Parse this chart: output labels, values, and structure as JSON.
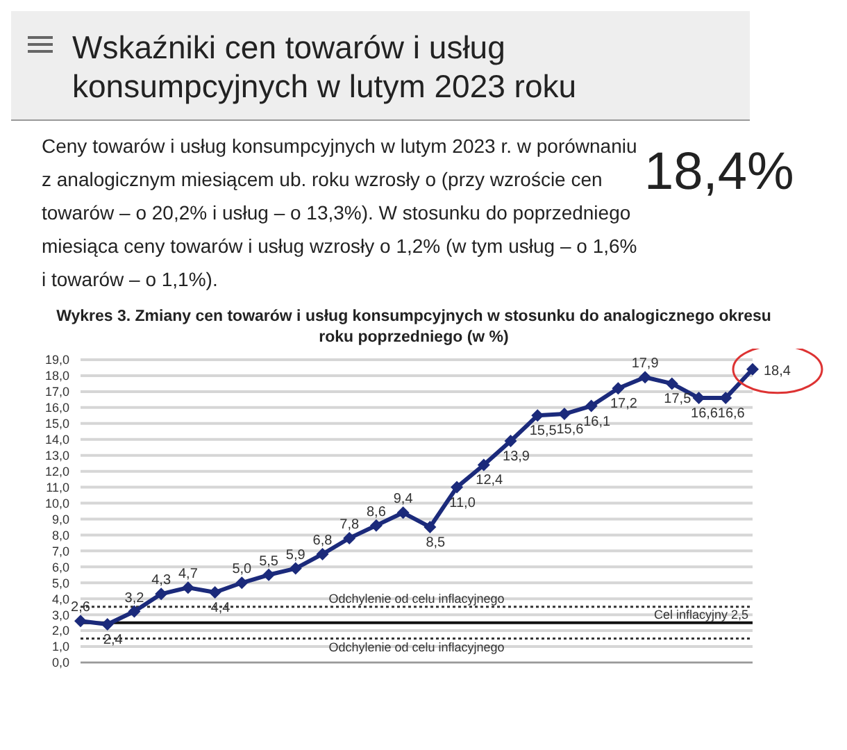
{
  "chart_data": {
    "type": "line",
    "title": "Wskaźniki cen towarów i usług konsumpcyjnych w lutym 2023 roku",
    "subtitle": "Ceny towarów i usług konsumpcyjnych w lutym 2023 r. w porównaniu z analogicznym miesiącem ub. roku wzrosły o (przy wzroście cen towarów – o 20,2% i usług – o 13,3%). W stosunku do poprzedniego miesiąca ceny towarów i usług wzrosły o 1,2% (w tym usług – o 1,6% i towarów – o 1,1%).",
    "annotations": [
      "18,4%",
      "Wykres 3. Zmiany cen towarów i usług konsumpcyjnych w stosunku do analogicznego okresu roku poprzedniego (w %)"
    ],
    "categories": [
      null,
      null,
      null,
      null,
      null,
      null,
      null,
      null,
      null,
      null,
      null,
      null,
      null,
      null,
      null,
      null,
      null,
      null,
      null,
      null,
      null,
      null,
      null,
      null,
      null,
      null
    ],
    "series": [
      {
        "color": "#1b2a7b",
        "values": [
          2.6,
          2.4,
          3.2,
          4.3,
          4.7,
          4.4,
          5.0,
          5.5,
          5.9,
          6.8,
          7.8,
          8.6,
          9.4,
          8.5,
          11.0,
          12.4,
          13.9,
          15.5,
          15.6,
          16.1,
          17.2,
          17.9,
          17.5,
          16.6,
          16.6,
          18.4
        ],
        "value_labels": [
          "2,6",
          "2,4",
          "3,2",
          "4,3",
          "4,7",
          "4,4",
          "5,0",
          "5,5",
          "5,9",
          "6,8",
          "7,8",
          "8,6",
          "9,4",
          "8,5",
          "11,0",
          "12,4",
          "13,9",
          "15,5",
          "15,6",
          "16,1",
          "17,2",
          "17,9",
          "17,5",
          "16,6",
          "16,6",
          "18,4"
        ]
      }
    ],
    "ylim": [
      0,
      19
    ],
    "yticks": [
      {
        "value": 0,
        "label": "0,0"
      },
      {
        "value": 1,
        "label": "1,0"
      },
      {
        "value": 2,
        "label": "2,0"
      },
      {
        "value": 3,
        "label": "3,0"
      },
      {
        "value": 4,
        "label": "4,0"
      },
      {
        "value": 5,
        "label": "5,0"
      },
      {
        "value": 6,
        "label": "6,0"
      },
      {
        "value": 7,
        "label": "7,0"
      },
      {
        "value": 8,
        "label": "8,0"
      },
      {
        "value": 9,
        "label": "9,0"
      },
      {
        "value": 10,
        "label": "10,0"
      },
      {
        "value": 11,
        "label": "11,0"
      },
      {
        "value": 12,
        "label": "12,0"
      },
      {
        "value": 13,
        "label": "13,0"
      },
      {
        "value": 14,
        "label": "14,0"
      },
      {
        "value": 15,
        "label": "15,0"
      },
      {
        "value": 16,
        "label": "16,0"
      },
      {
        "value": 17,
        "label": "17,0"
      },
      {
        "value": 18,
        "label": "18,0"
      },
      {
        "value": 19,
        "label": "19,0"
      }
    ],
    "ref_lines": [
      {
        "axis": "y",
        "value": 3.5,
        "label": "Odchylenie od celu inflacyjnego",
        "line_style": "dotted",
        "color": "#333333"
      },
      {
        "axis": "y",
        "value": 2.5,
        "label": "Cel inflacyjny 2,5",
        "line_style": "solid",
        "color": "#111111"
      },
      {
        "axis": "y",
        "value": 1.5,
        "label": "Odchylenie od celu inflacyjnego",
        "line_style": "dotted",
        "color": "#333333"
      }
    ],
    "grid": "y",
    "marker": "diamond",
    "line_style": "solid",
    "tick_labels": "y",
    "legend": false
  }
}
